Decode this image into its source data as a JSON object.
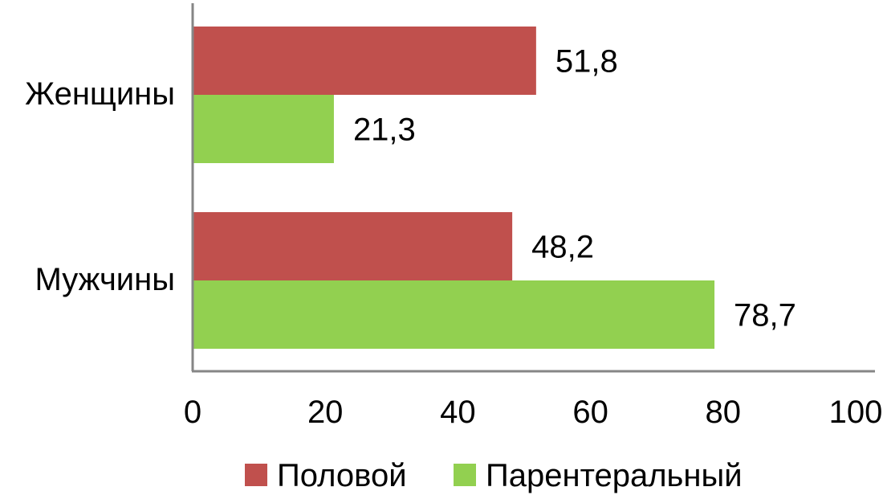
{
  "chart_data": {
    "type": "bar",
    "orientation": "horizontal",
    "categories": [
      "Женщины",
      "Мужчины"
    ],
    "series": [
      {
        "name": "Половой",
        "values": [
          51.8,
          48.2
        ],
        "labels": [
          "51,8",
          "48,2"
        ],
        "color": "#C0504D"
      },
      {
        "name": "Парентеральный",
        "values": [
          21.3,
          78.7
        ],
        "labels": [
          "21,3",
          "78,7"
        ],
        "color": "#92D050"
      }
    ],
    "xlim": [
      0,
      100
    ],
    "x_ticks": [
      "0",
      "20",
      "40",
      "60",
      "80",
      "100"
    ],
    "grid": false,
    "legend_position": "bottom"
  }
}
